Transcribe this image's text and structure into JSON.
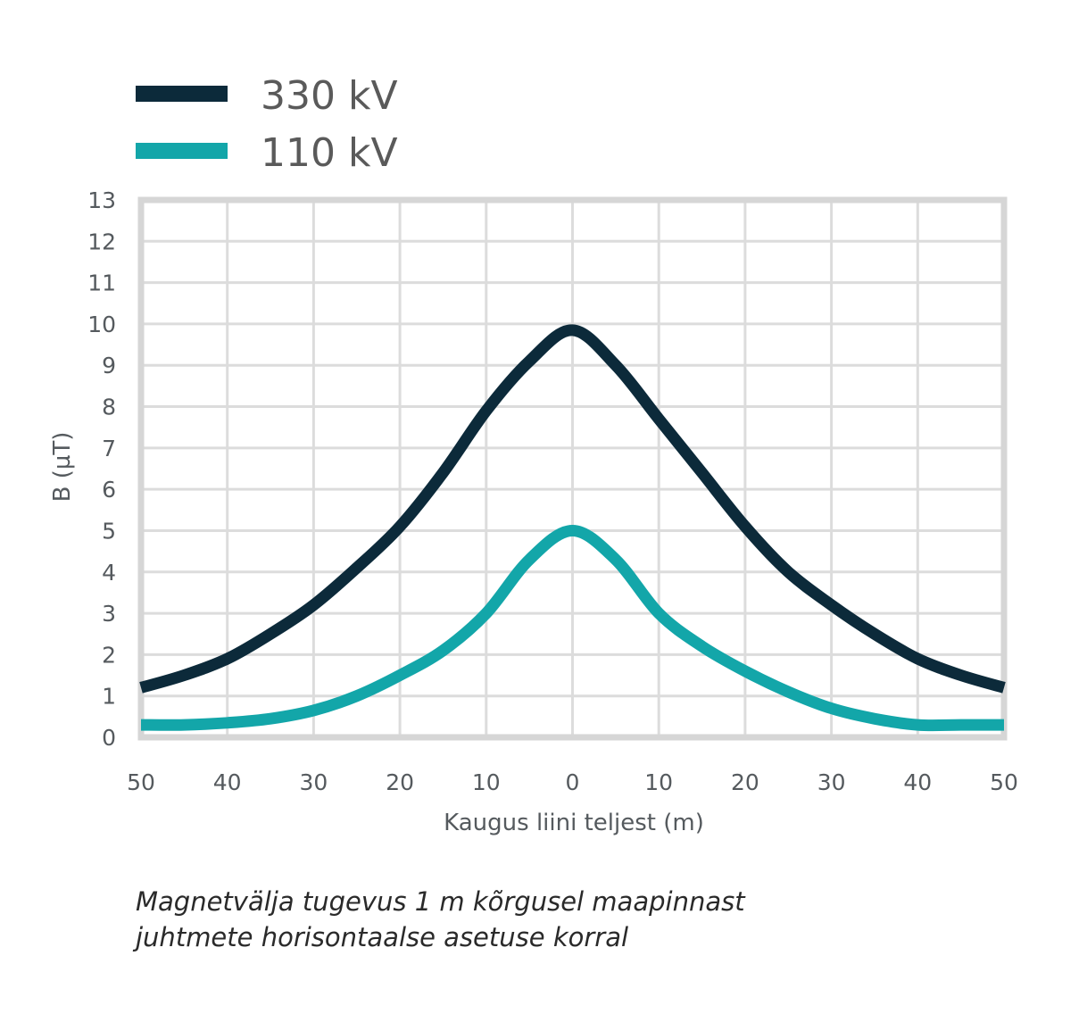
{
  "legend": [
    {
      "label": "330 kV",
      "color": "#0c2a3a"
    },
    {
      "label": "110 kV",
      "color": "#13a6a9"
    }
  ],
  "caption": {
    "line1": "Magnetvälja tugevus 1 m kõrgusel maapinnast",
    "line2": "juhtmete horisontaalse asetuse korral"
  },
  "chart_data": {
    "type": "line",
    "xlabel": "Kaugus liini teljest (m)",
    "ylabel": "B (µT)",
    "xlim": [
      -50,
      50
    ],
    "ylim": [
      0,
      13
    ],
    "x_tick_labels": [
      "50",
      "40",
      "30",
      "20",
      "10",
      "0",
      "10",
      "20",
      "30",
      "40",
      "50"
    ],
    "y_tick_labels": [
      "0",
      "1",
      "2",
      "3",
      "4",
      "5",
      "6",
      "7",
      "8",
      "9",
      "10",
      "11",
      "12",
      "13"
    ],
    "grid": true,
    "legend_position": "top-left",
    "x": [
      -50,
      -45,
      -40,
      -35,
      -30,
      -25,
      -20,
      -15,
      -10,
      -5,
      0,
      5,
      10,
      15,
      20,
      25,
      30,
      35,
      40,
      45,
      50
    ],
    "series": [
      {
        "name": "330 kV",
        "color": "#0c2a3a",
        "values": [
          1.2,
          1.5,
          1.9,
          2.5,
          3.2,
          4.1,
          5.1,
          6.4,
          7.9,
          9.1,
          9.85,
          9.0,
          7.7,
          6.4,
          5.1,
          4.0,
          3.2,
          2.5,
          1.9,
          1.5,
          1.2
        ]
      },
      {
        "name": "110 kV",
        "color": "#13a6a9",
        "values": [
          0.3,
          0.3,
          0.35,
          0.45,
          0.65,
          1.0,
          1.5,
          2.1,
          3.0,
          4.3,
          5.0,
          4.3,
          3.0,
          2.2,
          1.6,
          1.1,
          0.7,
          0.45,
          0.3,
          0.3,
          0.3
        ]
      }
    ]
  }
}
